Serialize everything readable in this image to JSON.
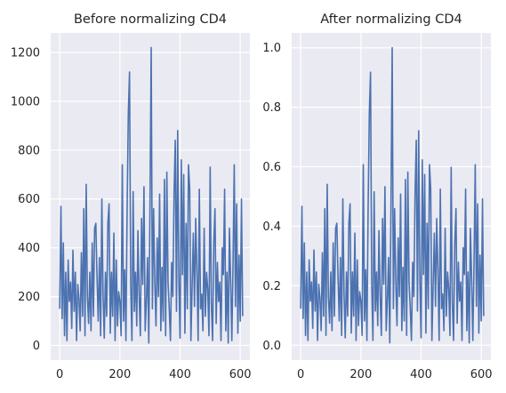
{
  "chart_data": [
    {
      "type": "line",
      "title": "Before normalizing CD4",
      "xlabel": "",
      "ylabel": "",
      "xlim": [
        -30,
        632
      ],
      "ylim": [
        -60,
        1280
      ],
      "xticks": [
        0,
        200,
        400,
        600
      ],
      "yticks": [
        0,
        200,
        400,
        600,
        800,
        1000,
        1200
      ],
      "grid": true,
      "series": [
        {
          "color": "#4c72b0",
          "x": [
            0,
            4,
            8,
            12,
            16,
            20,
            24,
            28,
            32,
            36,
            40,
            44,
            48,
            52,
            56,
            60,
            64,
            68,
            72,
            76,
            80,
            84,
            88,
            92,
            96,
            100,
            104,
            108,
            112,
            116,
            120,
            124,
            128,
            132,
            136,
            140,
            144,
            148,
            152,
            156,
            160,
            164,
            168,
            172,
            176,
            180,
            184,
            188,
            192,
            196,
            200,
            204,
            208,
            212,
            216,
            220,
            224,
            228,
            232,
            236,
            240,
            244,
            248,
            252,
            256,
            260,
            264,
            268,
            272,
            276,
            280,
            284,
            288,
            292,
            296,
            300,
            304,
            308,
            312,
            316,
            320,
            324,
            328,
            332,
            336,
            340,
            344,
            348,
            352,
            356,
            360,
            364,
            368,
            372,
            376,
            380,
            384,
            388,
            392,
            396,
            400,
            404,
            408,
            412,
            416,
            420,
            424,
            428,
            432,
            436,
            440,
            444,
            448,
            452,
            456,
            460,
            464,
            468,
            472,
            476,
            480,
            484,
            488,
            492,
            496,
            500,
            504,
            508,
            512,
            516,
            520,
            524,
            528,
            532,
            536,
            540,
            544,
            548,
            552,
            556,
            560,
            564,
            568,
            572,
            576,
            580,
            584,
            588,
            592,
            596,
            600,
            604,
            608
          ],
          "values": [
            150,
            570,
            110,
            420,
            40,
            300,
            20,
            350,
            180,
            260,
            70,
            390,
            140,
            300,
            20,
            250,
            190,
            60,
            380,
            120,
            560,
            40,
            660,
            200,
            90,
            300,
            60,
            420,
            120,
            480,
            500,
            280,
            100,
            360,
            40,
            600,
            210,
            30,
            300,
            120,
            500,
            580,
            50,
            300,
            120,
            460,
            20,
            350,
            80,
            220,
            180,
            40,
            740,
            100,
            310,
            20,
            560,
            950,
            1120,
            250,
            20,
            630,
            140,
            300,
            80,
            470,
            200,
            40,
            520,
            250,
            650,
            60,
            180,
            360,
            10,
            570,
            1220,
            150,
            560,
            260,
            80,
            440,
            200,
            620,
            60,
            320,
            100,
            680,
            40,
            710,
            260,
            150,
            20,
            340,
            200,
            620,
            840,
            140,
            880,
            260,
            30,
            760,
            290,
            700,
            50,
            500,
            150,
            740,
            640,
            20,
            240,
            460,
            160,
            520,
            300,
            20,
            640,
            150,
            210,
            60,
            480,
            120,
            300,
            230,
            40,
            730,
            170,
            20,
            420,
            560,
            90,
            340,
            180,
            260,
            20,
            400,
            290,
            640,
            60,
            300,
            10,
            480,
            270,
            20,
            340,
            740,
            160,
            580,
            50,
            370,
            100,
            600,
            120
          ]
        }
      ]
    },
    {
      "type": "line",
      "title": "After normalizing CD4",
      "xlabel": "",
      "ylabel": "",
      "xlim": [
        -30,
        632
      ],
      "ylim": [
        -0.05,
        1.05
      ],
      "xticks": [
        0,
        200,
        400,
        600
      ],
      "yticks": [
        0.0,
        0.2,
        0.4,
        0.6,
        0.8,
        1.0
      ],
      "grid": true,
      "series": [
        {
          "color": "#4c72b0",
          "x": [
            0,
            4,
            8,
            12,
            16,
            20,
            24,
            28,
            32,
            36,
            40,
            44,
            48,
            52,
            56,
            60,
            64,
            68,
            72,
            76,
            80,
            84,
            88,
            92,
            96,
            100,
            104,
            108,
            112,
            116,
            120,
            124,
            128,
            132,
            136,
            140,
            144,
            148,
            152,
            156,
            160,
            164,
            168,
            172,
            176,
            180,
            184,
            188,
            192,
            196,
            200,
            204,
            208,
            212,
            216,
            220,
            224,
            228,
            232,
            236,
            240,
            244,
            248,
            252,
            256,
            260,
            264,
            268,
            272,
            276,
            280,
            284,
            288,
            292,
            296,
            300,
            304,
            308,
            312,
            316,
            320,
            324,
            328,
            332,
            336,
            340,
            344,
            348,
            352,
            356,
            360,
            364,
            368,
            372,
            376,
            380,
            384,
            388,
            392,
            396,
            400,
            404,
            408,
            412,
            416,
            420,
            424,
            428,
            432,
            436,
            440,
            444,
            448,
            452,
            456,
            460,
            464,
            468,
            472,
            476,
            480,
            484,
            488,
            492,
            496,
            500,
            504,
            508,
            512,
            516,
            520,
            524,
            528,
            532,
            536,
            540,
            544,
            548,
            552,
            556,
            560,
            564,
            568,
            572,
            576,
            580,
            584,
            588,
            592,
            596,
            600,
            604,
            608
          ],
          "values": [
            0.123,
            0.467,
            0.09,
            0.344,
            0.033,
            0.246,
            0.016,
            0.287,
            0.148,
            0.213,
            0.057,
            0.32,
            0.115,
            0.246,
            0.016,
            0.205,
            0.156,
            0.049,
            0.311,
            0.098,
            0.459,
            0.033,
            0.541,
            0.164,
            0.074,
            0.246,
            0.049,
            0.344,
            0.098,
            0.393,
            0.41,
            0.23,
            0.082,
            0.295,
            0.033,
            0.492,
            0.172,
            0.025,
            0.246,
            0.098,
            0.41,
            0.475,
            0.041,
            0.246,
            0.098,
            0.377,
            0.016,
            0.287,
            0.066,
            0.18,
            0.148,
            0.033,
            0.607,
            0.082,
            0.254,
            0.016,
            0.459,
            0.779,
            0.918,
            0.205,
            0.016,
            0.516,
            0.115,
            0.246,
            0.066,
            0.385,
            0.164,
            0.033,
            0.426,
            0.205,
            0.533,
            0.049,
            0.148,
            0.295,
            0.008,
            0.467,
            1.0,
            0.123,
            0.459,
            0.213,
            0.066,
            0.361,
            0.164,
            0.508,
            0.049,
            0.262,
            0.082,
            0.557,
            0.033,
            0.582,
            0.213,
            0.123,
            0.016,
            0.279,
            0.164,
            0.508,
            0.689,
            0.115,
            0.721,
            0.213,
            0.025,
            0.623,
            0.238,
            0.574,
            0.041,
            0.41,
            0.123,
            0.607,
            0.525,
            0.016,
            0.197,
            0.377,
            0.131,
            0.426,
            0.246,
            0.016,
            0.525,
            0.123,
            0.172,
            0.049,
            0.393,
            0.098,
            0.246,
            0.189,
            0.033,
            0.598,
            0.139,
            0.016,
            0.344,
            0.459,
            0.074,
            0.279,
            0.148,
            0.213,
            0.016,
            0.328,
            0.238,
            0.525,
            0.049,
            0.246,
            0.008,
            0.393,
            0.221,
            0.016,
            0.279,
            0.607,
            0.131,
            0.475,
            0.041,
            0.303,
            0.082,
            0.492,
            0.098
          ]
        }
      ]
    }
  ]
}
